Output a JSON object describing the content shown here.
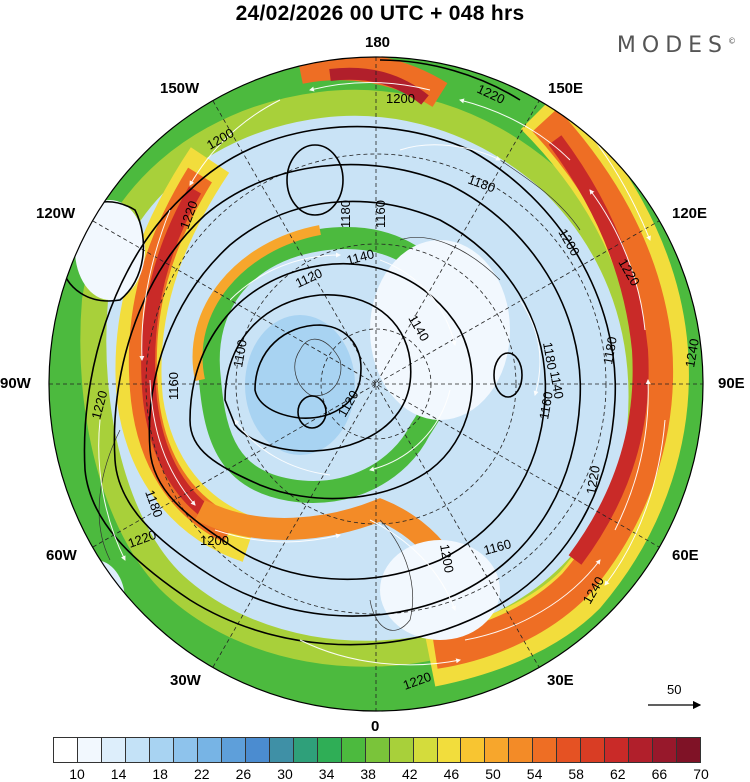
{
  "header": {
    "title": "24/02/2026  00 UTC  + 048 hrs",
    "brand": "MODES",
    "brand_mark": "©"
  },
  "longitude_labels": {
    "top": "180",
    "top_right": "150E",
    "right_upper": "120E",
    "right": "90E",
    "right_lower": "60E",
    "bottom_right": "30E",
    "bottom": "0",
    "bottom_left": "30W",
    "left_lower": "60W",
    "left": "90W",
    "left_upper": "120W",
    "top_left": "150W"
  },
  "contour_labels": [
    {
      "text": "1200"
    },
    {
      "text": "1220"
    },
    {
      "text": "1180"
    },
    {
      "text": "1160"
    },
    {
      "text": "1140"
    },
    {
      "text": "1120"
    },
    {
      "text": "1100"
    },
    {
      "text": "1120"
    },
    {
      "text": "1140"
    },
    {
      "text": "1200"
    },
    {
      "text": "1220"
    },
    {
      "text": "1180"
    },
    {
      "text": "1160"
    },
    {
      "text": "1220"
    },
    {
      "text": "1180"
    },
    {
      "text": "1200"
    },
    {
      "text": "1220"
    },
    {
      "text": "1240"
    },
    {
      "text": "1240"
    },
    {
      "text": "1180"
    },
    {
      "text": "1220"
    },
    {
      "text": "1200"
    },
    {
      "text": "1180"
    },
    {
      "text": "1160"
    },
    {
      "text": "1140"
    },
    {
      "text": "1160"
    },
    {
      "text": "1220"
    },
    {
      "text": "1200"
    },
    {
      "text": "1220"
    }
  ],
  "vector_legend": {
    "value": "50"
  },
  "colorbar": {
    "colors": [
      "#ffffff",
      "#f2f8fe",
      "#ddeefb",
      "#c4e2f7",
      "#a8d3f2",
      "#8ec3ec",
      "#77b4e5",
      "#5e9fda",
      "#4b8cd0",
      "#3f90a6",
      "#2fa07a",
      "#2fae56",
      "#4cba3e",
      "#7ac43a",
      "#a8d03a",
      "#d4dc3c",
      "#f2dd3c",
      "#f8c531",
      "#f7a62c",
      "#f38b27",
      "#ee6e24",
      "#e55223",
      "#d93d24",
      "#c92a28",
      "#b11f2b",
      "#97182b",
      "#7f1226"
    ],
    "tick_labels": [
      "10",
      "14",
      "18",
      "22",
      "26",
      "30",
      "34",
      "38",
      "42",
      "46",
      "50",
      "54",
      "58",
      "62",
      "66",
      "70"
    ]
  }
}
